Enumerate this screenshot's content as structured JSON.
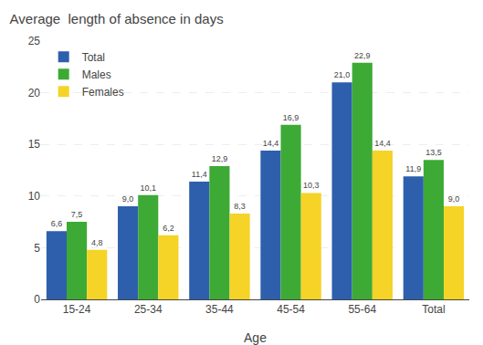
{
  "chart_data": {
    "type": "bar",
    "title": "Average  length of absence in days",
    "xlabel": "Age",
    "categories": [
      "15-24",
      "25-34",
      "35-44",
      "45-54",
      "55-64",
      "Total"
    ],
    "series": [
      {
        "name": "Total",
        "color": "#2E5FAC",
        "values": [
          6.6,
          9.0,
          11.4,
          14.4,
          21.0,
          11.9
        ],
        "value_labels": [
          "6,6",
          "9,0",
          "11,4",
          "14,4",
          "21,0",
          "11,9"
        ]
      },
      {
        "name": "Males",
        "color": "#3DAA35",
        "values": [
          7.5,
          10.1,
          12.9,
          16.9,
          22.9,
          13.5
        ],
        "value_labels": [
          "7,5",
          "10,1",
          "12,9",
          "16,9",
          "22,9",
          "13,5"
        ]
      },
      {
        "name": "Females",
        "color": "#F5D327",
        "values": [
          4.8,
          6.2,
          8.3,
          10.3,
          14.4,
          9.0
        ],
        "value_labels": [
          "4,8",
          "6,2",
          "8,3",
          "10,3",
          "14,4",
          "9,0"
        ]
      }
    ],
    "ylim": [
      0,
      25
    ],
    "yticks": [
      0,
      5,
      10,
      15,
      20,
      25
    ],
    "grid": true,
    "legend": "upper left",
    "data_labels": true
  }
}
